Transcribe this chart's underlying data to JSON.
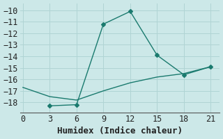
{
  "xlabel": "Humidex (Indice chaleur)",
  "bg_color": "#cce8e8",
  "grid_color": "#b0d4d4",
  "line_color": "#1a7a6e",
  "line1_x": [
    0,
    3,
    6,
    9,
    12,
    15,
    18,
    21
  ],
  "line1_y": [
    -16.7,
    -17.5,
    -17.8,
    -17.0,
    -16.3,
    -15.8,
    -15.5,
    -14.9
  ],
  "line2_x": [
    3,
    6,
    9,
    12,
    15,
    18,
    21
  ],
  "line2_y": [
    -18.3,
    -18.2,
    -11.2,
    -10.1,
    -13.9,
    -15.6,
    -14.9
  ],
  "xlim": [
    -0.3,
    22
  ],
  "ylim": [
    -18.9,
    -9.4
  ],
  "xticks": [
    0,
    3,
    6,
    9,
    12,
    15,
    18,
    21
  ],
  "yticks": [
    -18,
    -17,
    -16,
    -15,
    -14,
    -13,
    -12,
    -11,
    -10
  ],
  "tick_fontsize": 8.5,
  "xlabel_fontsize": 9
}
